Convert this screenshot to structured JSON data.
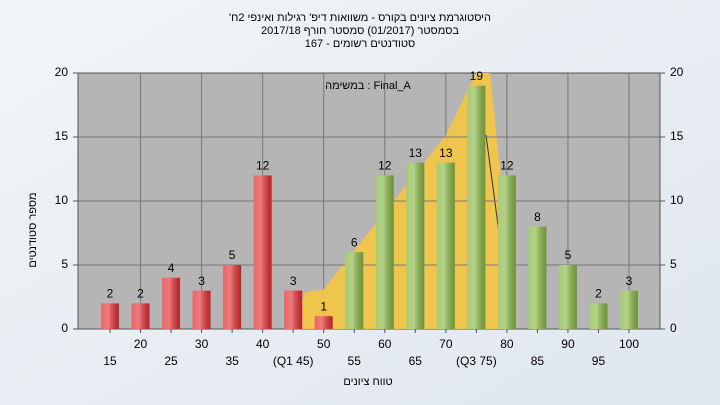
{
  "chart_data": {
    "type": "bar",
    "title": [
      "היסטוגרמת ציונים בקורס - משוואות דיפ' רגילות ואינפי 2ח'",
      "בסמסטר  (01/2017)  סמסטר חורף 2017/18",
      "סטודנטים רשומים - 167"
    ],
    "annotation": "Final_A : במשימה",
    "x_label": "טווח ציונים",
    "y_label": "מספר סטודנטים",
    "categories": [
      "15",
      "20",
      "25",
      "30",
      "35",
      "40",
      "(Q1 45)",
      "50",
      "55",
      "60",
      "65",
      "70",
      "(Q3 75)",
      "80",
      "85",
      "90",
      "95",
      "100"
    ],
    "values": [
      2,
      2,
      4,
      3,
      5,
      12,
      3,
      1,
      6,
      12,
      13,
      13,
      19,
      12,
      8,
      5,
      2,
      3
    ],
    "colors": [
      "#e53235",
      "#e53235",
      "#e53235",
      "#e53235",
      "#e53235",
      "#e53235",
      "#e53235",
      "#e53235",
      "#8cba48",
      "#8cba48",
      "#8cba48",
      "#8cba48",
      "#8cba48",
      "#8cba48",
      "#8cba48",
      "#8cba48",
      "#8cba48",
      "#8cba48"
    ],
    "ylim": [
      0,
      20
    ],
    "yticks": [
      0,
      5,
      10,
      15,
      20
    ],
    "grid": true
  }
}
